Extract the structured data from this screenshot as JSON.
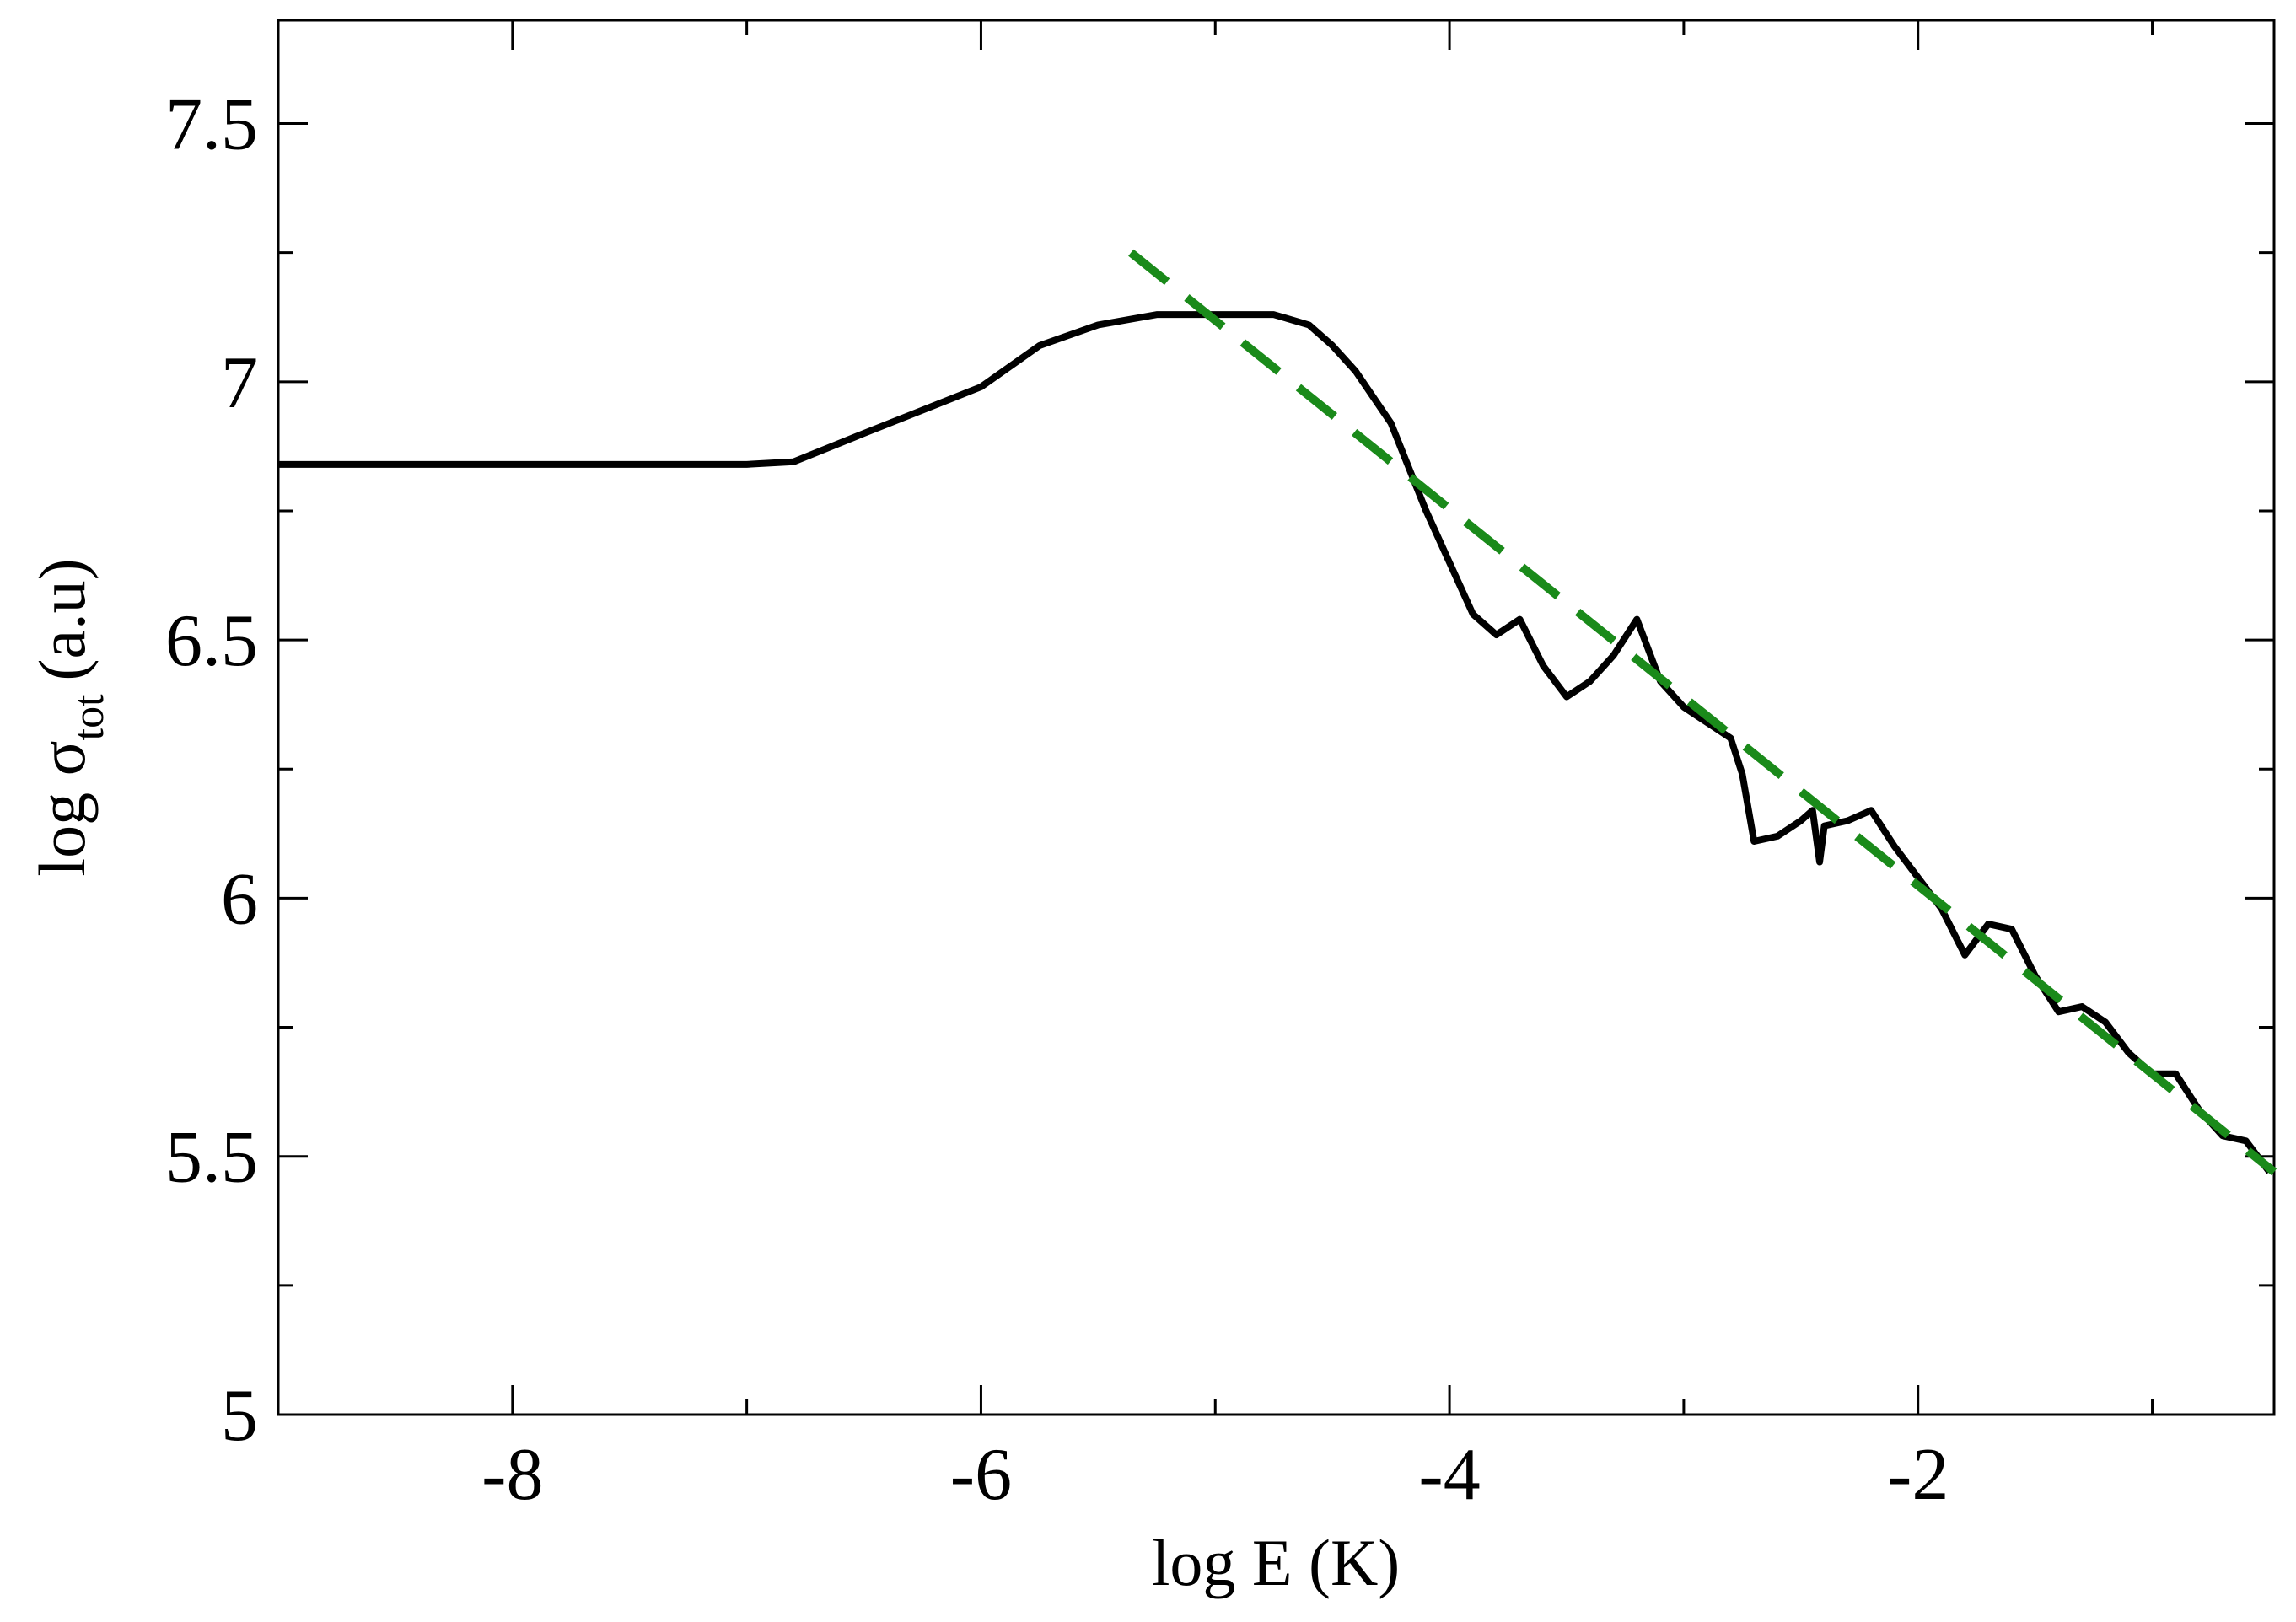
{
  "chart_data": {
    "type": "line",
    "xlabel": "log E (K)",
    "ylabel": "log σ",
    "ylabel_sub": "tot",
    "ylabel_suffix": "(a.u)",
    "xlim": [
      -9,
      -0.48
    ],
    "ylim": [
      5,
      7.7
    ],
    "xticks": [
      -8,
      -6,
      -4,
      -2
    ],
    "yticks": [
      5,
      5.5,
      6,
      6.5,
      7,
      7.5
    ],
    "xminor": [
      -9,
      -7,
      -5,
      -3,
      -1
    ],
    "yminor": [
      5.25,
      5.75,
      6.25,
      6.75,
      7.25
    ],
    "mirror_ticks": true,
    "series": [
      {
        "color": "#000000",
        "dashed": false,
        "x": [
          -9,
          -7,
          -6.8,
          -6.5,
          -6.0,
          -5.75,
          -5.5,
          -5.25,
          -5.0,
          -4.75,
          -4.6,
          -4.5,
          -4.4,
          -4.25,
          -4.1,
          -4.0,
          -3.9,
          -3.8,
          -3.7,
          -3.6,
          -3.5,
          -3.4,
          -3.3,
          -3.2,
          -3.1,
          -3.0,
          -2.9,
          -2.8,
          -2.75,
          -2.7,
          -2.6,
          -2.5,
          -2.45,
          -2.42,
          -2.4,
          -2.3,
          -2.2,
          -2.1,
          -2.0,
          -1.9,
          -1.8,
          -1.7,
          -1.6,
          -1.5,
          -1.4,
          -1.3,
          -1.2,
          -1.1,
          -1.0,
          -0.9,
          -0.8,
          -0.7,
          -0.6,
          -0.5
        ],
        "values": [
          6.84,
          6.84,
          6.845,
          6.9,
          6.99,
          7.07,
          7.11,
          7.13,
          7.13,
          7.13,
          7.11,
          7.07,
          7.02,
          6.92,
          6.75,
          6.65,
          6.55,
          6.51,
          6.54,
          6.45,
          6.39,
          6.42,
          6.47,
          6.54,
          6.42,
          6.37,
          6.34,
          6.31,
          6.24,
          6.11,
          6.12,
          6.15,
          6.17,
          6.07,
          6.14,
          6.15,
          6.17,
          6.1,
          6.04,
          5.98,
          5.89,
          5.95,
          5.94,
          5.85,
          5.78,
          5.79,
          5.76,
          5.7,
          5.66,
          5.66,
          5.59,
          5.54,
          5.53,
          5.47
        ]
      },
      {
        "color": "#1a8a1a",
        "dashed": true,
        "x": [
          -5.36,
          -0.48
        ],
        "values": [
          7.25,
          5.47
        ]
      }
    ]
  }
}
